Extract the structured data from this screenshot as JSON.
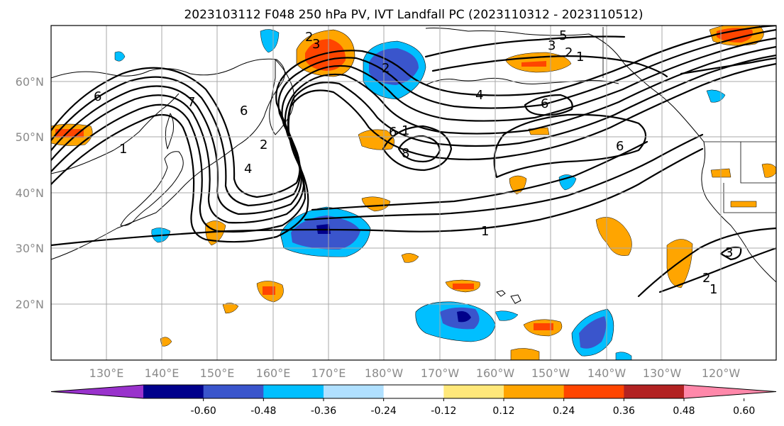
{
  "title": "2023103112 F048 250 hPa PV, IVT Landfall PC (2023110312 - 2023110512)",
  "axes": {
    "lat_labels": [
      "60°N",
      "50°N",
      "40°N",
      "30°N",
      "20°N"
    ],
    "lon_labels": [
      "130°E",
      "140°E",
      "150°E",
      "160°E",
      "170°E",
      "180°W",
      "170°W",
      "160°W",
      "150°W",
      "140°W",
      "130°W",
      "120°W"
    ]
  },
  "contour_labels": [
    "2",
    "3",
    "5",
    "3",
    "2",
    "1",
    "2",
    "6",
    "8",
    "1",
    "7",
    "6",
    "2",
    "4",
    "1",
    "4",
    "6",
    "6",
    "6",
    "1",
    "2",
    "3",
    "1"
  ],
  "colorbar": {
    "ticks": [
      "-0.60",
      "-0.48",
      "-0.36",
      "-0.24",
      "-0.12",
      "0.12",
      "0.24",
      "0.36",
      "0.48",
      "0.60"
    ],
    "colors": [
      "#9932cc",
      "#00008b",
      "#3a55cc",
      "#00bfff",
      "#b0e0ff",
      "#ffffff",
      "#ffe87a",
      "#ffa500",
      "#ff4500",
      "#b22222",
      "#ff88aa"
    ]
  }
}
